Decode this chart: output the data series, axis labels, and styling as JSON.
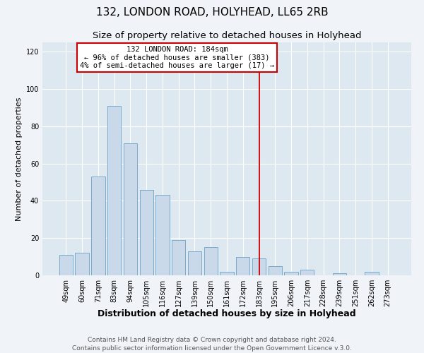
{
  "title": "132, LONDON ROAD, HOLYHEAD, LL65 2RB",
  "subtitle": "Size of property relative to detached houses in Holyhead",
  "xlabel": "Distribution of detached houses by size in Holyhead",
  "ylabel": "Number of detached properties",
  "categories": [
    "49sqm",
    "60sqm",
    "71sqm",
    "83sqm",
    "94sqm",
    "105sqm",
    "116sqm",
    "127sqm",
    "139sqm",
    "150sqm",
    "161sqm",
    "172sqm",
    "183sqm",
    "195sqm",
    "206sqm",
    "217sqm",
    "228sqm",
    "239sqm",
    "251sqm",
    "262sqm",
    "273sqm"
  ],
  "values": [
    11,
    12,
    53,
    91,
    71,
    46,
    43,
    19,
    13,
    15,
    2,
    10,
    9,
    5,
    2,
    3,
    0,
    1,
    0,
    2,
    0
  ],
  "bar_color": "#c9d9ea",
  "bar_edge_color": "#7aabcc",
  "vline_x_index": 12,
  "vline_color": "#cc0000",
  "annotation_line1": "132 LONDON ROAD: 184sqm",
  "annotation_line2": "← 96% of detached houses are smaller (383)",
  "annotation_line3": "4% of semi-detached houses are larger (17) →",
  "annotation_box_color": "#ffffff",
  "annotation_box_edge_color": "#cc0000",
  "ylim": [
    0,
    125
  ],
  "yticks": [
    0,
    20,
    40,
    60,
    80,
    100,
    120
  ],
  "ax_bg_color": "#dde8f0",
  "fig_bg_color": "#f0f4f8",
  "footer_line1": "Contains HM Land Registry data © Crown copyright and database right 2024.",
  "footer_line2": "Contains public sector information licensed under the Open Government Licence v.3.0.",
  "title_fontsize": 11,
  "subtitle_fontsize": 9.5,
  "xlabel_fontsize": 9,
  "ylabel_fontsize": 8,
  "tick_fontsize": 7,
  "annotation_fontsize": 7.5,
  "footer_fontsize": 6.5
}
